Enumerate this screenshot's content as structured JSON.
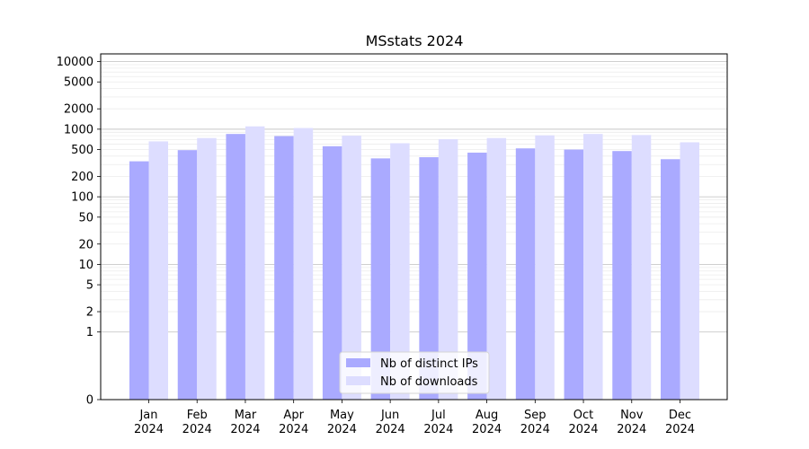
{
  "chart_data": {
    "type": "bar",
    "title": "MSstats 2024",
    "xlabel": "",
    "ylabel": "",
    "y_scale": "symlog",
    "ylim": [
      0,
      13000
    ],
    "y_ticks": [
      0,
      1,
      2,
      5,
      10,
      20,
      50,
      100,
      200,
      500,
      1000,
      2000,
      5000,
      10000
    ],
    "grid": "horizontal",
    "legend_position": "bottom-center",
    "categories": [
      {
        "month": "Jan",
        "year": "2024"
      },
      {
        "month": "Feb",
        "year": "2024"
      },
      {
        "month": "Mar",
        "year": "2024"
      },
      {
        "month": "Apr",
        "year": "2024"
      },
      {
        "month": "May",
        "year": "2024"
      },
      {
        "month": "Jun",
        "year": "2024"
      },
      {
        "month": "Jul",
        "year": "2024"
      },
      {
        "month": "Aug",
        "year": "2024"
      },
      {
        "month": "Sep",
        "year": "2024"
      },
      {
        "month": "Oct",
        "year": "2024"
      },
      {
        "month": "Nov",
        "year": "2024"
      },
      {
        "month": "Dec",
        "year": "2024"
      }
    ],
    "series": [
      {
        "name": "Nb of distinct IPs",
        "color": "#aaaaff",
        "values": [
          335,
          490,
          850,
          790,
          560,
          370,
          385,
          450,
          520,
          500,
          475,
          360
        ]
      },
      {
        "name": "Nb of downloads",
        "color": "#ddddff",
        "values": [
          660,
          740,
          1100,
          1040,
          800,
          620,
          710,
          740,
          810,
          850,
          820,
          640
        ]
      }
    ]
  }
}
